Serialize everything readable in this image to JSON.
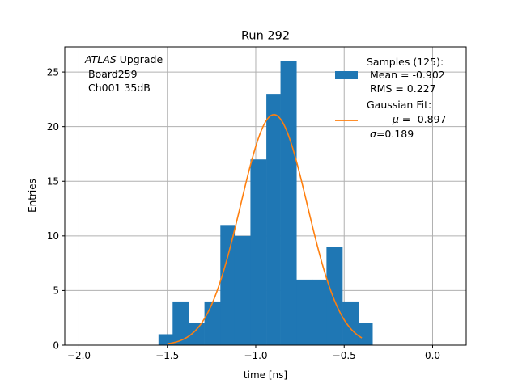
{
  "chart_data": {
    "type": "bar",
    "title": "Run 292",
    "xlabel": "time [ns]",
    "ylabel": "Entries",
    "xlim": [
      -2.08,
      0.19
    ],
    "ylim": [
      0,
      27.3
    ],
    "grid": true,
    "xticks": [
      -2.0,
      -1.5,
      -1.0,
      -0.5,
      0.0
    ],
    "xtick_labels": [
      "−2.0",
      "−1.5",
      "−1.0",
      "−0.5",
      "0.0"
    ],
    "yticks": [
      0,
      5,
      10,
      15,
      20,
      25
    ],
    "ytick_labels": [
      "0",
      "5",
      "10",
      "15",
      "20",
      "25"
    ],
    "annotation": {
      "italic": "ATLAS",
      "rest": " Upgrade",
      "line2": " Board259",
      "line3": " Ch001 35dB"
    },
    "histogram": {
      "name": "Samples (125):",
      "color": "#1f77b4",
      "bins": [
        {
          "left": -1.55,
          "right": -1.47,
          "count": 1
        },
        {
          "left": -1.47,
          "right": -1.38,
          "count": 4
        },
        {
          "left": -1.38,
          "right": -1.29,
          "count": 2
        },
        {
          "left": -1.29,
          "right": -1.2,
          "count": 4
        },
        {
          "left": -1.2,
          "right": -1.12,
          "count": 11
        },
        {
          "left": -1.12,
          "right": -1.03,
          "count": 10
        },
        {
          "left": -1.03,
          "right": -0.94,
          "count": 17
        },
        {
          "left": -0.94,
          "right": -0.86,
          "count": 23
        },
        {
          "left": -0.86,
          "right": -0.77,
          "count": 26
        },
        {
          "left": -0.77,
          "right": -0.68,
          "count": 6
        },
        {
          "left": -0.68,
          "right": -0.6,
          "count": 6
        },
        {
          "left": -0.6,
          "right": -0.51,
          "count": 9
        },
        {
          "left": -0.51,
          "right": -0.42,
          "count": 4
        },
        {
          "left": -0.42,
          "right": -0.34,
          "count": 2
        }
      ]
    },
    "fit": {
      "color": "#ff7f0e",
      "mu": -0.897,
      "sigma": 0.189,
      "amplitude": 21.1,
      "x_range": [
        -1.5,
        -0.4
      ]
    },
    "legend": {
      "placement": "top-right",
      "hist_lines": [
        "Samples (125):",
        " Mean = -0.902",
        " RMS = 0.227"
      ],
      "fit_line1": "Gaussian Fit:",
      "fit_mu_symbol": "μ",
      "fit_mu_value": " = -0.897",
      "fit_sigma_symbol": "σ",
      "fit_sigma_value": "=0.189"
    }
  }
}
